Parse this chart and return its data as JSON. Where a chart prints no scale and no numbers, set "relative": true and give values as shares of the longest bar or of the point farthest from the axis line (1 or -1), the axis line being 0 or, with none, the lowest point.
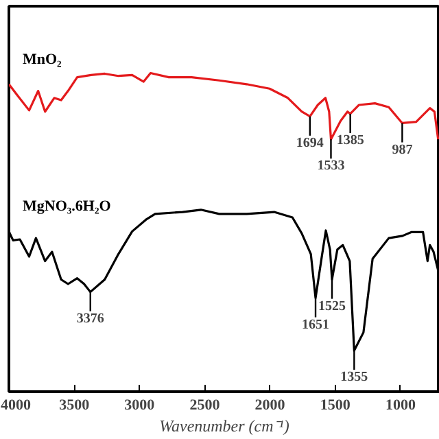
{
  "chart_data": {
    "type": "line",
    "relative": true,
    "xlabel": "Wavenumber (cm⁻¹)",
    "xlim": [
      4000,
      700
    ],
    "xticks": [
      4000,
      3500,
      3000,
      2500,
      2000,
      1500,
      1000
    ],
    "legend": false,
    "grid": false,
    "series": [
      {
        "name": "MnO₂",
        "color": "#e41a1c",
        "x": [
          4000,
          3933,
          3845,
          3776,
          3723,
          3653,
          3600,
          3547,
          3477,
          3371,
          3266,
          3161,
          3056,
          2968,
          2915,
          2775,
          2600,
          2389,
          2178,
          2003,
          1863,
          1757,
          1694,
          1634,
          1575,
          1547,
          1533,
          1459,
          1406,
          1385,
          1318,
          1196,
          1090,
          987,
          880,
          775,
          740,
          712
        ],
        "values": [
          0.965,
          0.929,
          0.883,
          0.944,
          0.879,
          0.922,
          0.915,
          0.944,
          0.987,
          0.994,
          0.998,
          0.991,
          0.994,
          0.973,
          1.0,
          0.987,
          0.987,
          0.977,
          0.965,
          0.951,
          0.922,
          0.879,
          0.864,
          0.9,
          0.922,
          0.879,
          0.792,
          0.85,
          0.879,
          0.872,
          0.9,
          0.905,
          0.893,
          0.843,
          0.847,
          0.89,
          0.879,
          0.792
        ]
      },
      {
        "name": "MgNO₃.6H₂O",
        "color": "#000000",
        "x": [
          4000,
          3968,
          3916,
          3845,
          3793,
          3723,
          3670,
          3600,
          3547,
          3477,
          3424,
          3376,
          3266,
          3161,
          3056,
          2950,
          2880,
          2670,
          2529,
          2389,
          2178,
          1968,
          1828,
          1757,
          1687,
          1651,
          1600,
          1572,
          1540,
          1525,
          1484,
          1442,
          1389,
          1355,
          1284,
          1214,
          1090,
          985,
          915,
          828,
          793,
          775,
          747,
          712
        ],
        "values": [
          0.503,
          0.475,
          0.478,
          0.424,
          0.482,
          0.41,
          0.439,
          0.352,
          0.338,
          0.356,
          0.338,
          0.313,
          0.352,
          0.432,
          0.503,
          0.54,
          0.558,
          0.564,
          0.571,
          0.558,
          0.558,
          0.564,
          0.547,
          0.497,
          0.432,
          0.294,
          0.432,
          0.506,
          0.446,
          0.352,
          0.446,
          0.46,
          0.41,
          0.129,
          0.186,
          0.417,
          0.482,
          0.489,
          0.501,
          0.501,
          0.41,
          0.46,
          0.439,
          0.381
        ]
      }
    ],
    "annotations": [
      {
        "text": "1694",
        "x": 1694,
        "y": 0.864
      },
      {
        "text": "1533",
        "x": 1533,
        "y": 0.792
      },
      {
        "text": "1385",
        "x": 1385,
        "y": 0.872
      },
      {
        "text": "987",
        "x": 987,
        "y": 0.843
      },
      {
        "text": "3376",
        "x": 3376,
        "y": 0.313
      },
      {
        "text": "1651",
        "x": 1651,
        "y": 0.294
      },
      {
        "text": "1525",
        "x": 1525,
        "y": 0.352
      },
      {
        "text": "1355",
        "x": 1355,
        "y": 0.129
      }
    ]
  }
}
